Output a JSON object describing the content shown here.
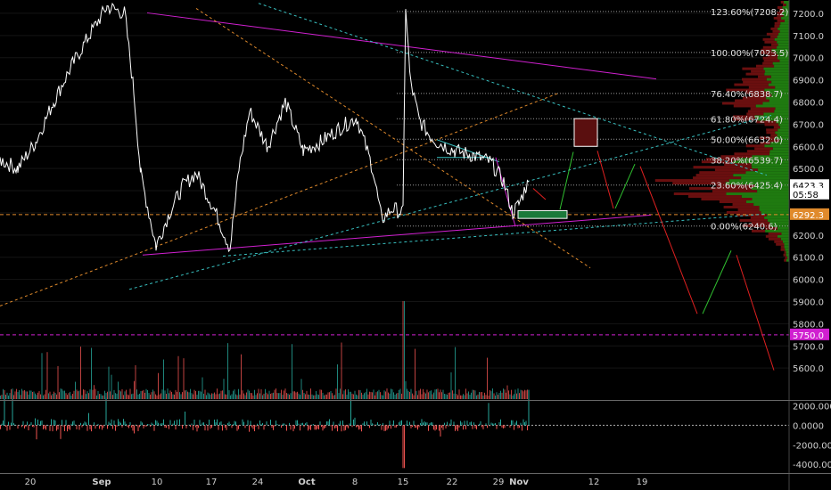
{
  "chart_data": {
    "type": "line",
    "symbol_note": "",
    "y_range": [
      5460,
      7260
    ],
    "y_ticks": [
      "7200.0",
      "7100.0",
      "7000.0",
      "6900.0",
      "6800.0",
      "6700.0",
      "6600.0",
      "6500.0",
      "6400.0",
      "6300.0",
      "6200.0",
      "6100.0",
      "6000.0",
      "5900.0",
      "5800.0",
      "5700.0",
      "5600.0"
    ],
    "x_ticks": [
      "20",
      "Sep",
      "10",
      "17",
      "24",
      "Oct",
      "8",
      "15",
      "22",
      "29",
      "Nov",
      "12",
      "19"
    ],
    "fib_levels": [
      {
        "label": "123.60%(7208.2)",
        "value": 7208.2
      },
      {
        "label": "100.00%(7023.5)",
        "value": 7023.5
      },
      {
        "label": "76.40%(6838.7)",
        "value": 6838.7
      },
      {
        "label": "61.80%(6724.4)",
        "value": 6724.4
      },
      {
        "label": "50.00%(6632.0)",
        "value": 6632.0
      },
      {
        "label": "38.20%(6539.7)",
        "value": 6539.7
      },
      {
        "label": "23.60%(6425.4)",
        "value": 6425.4
      },
      {
        "label": "0.00%(6240.6)",
        "value": 6240.6
      }
    ],
    "price_tags": [
      {
        "text": "6423.3",
        "value": 6423.3,
        "color": "#ffffff",
        "text_color": "#000000"
      },
      {
        "text": "05:58",
        "value": 6385,
        "color": "#ffffff",
        "text_color": "#000000"
      },
      {
        "text": "6292.3",
        "value": 6292.3,
        "color": "#e08a2c",
        "text_color": "#ffffff"
      },
      {
        "text": "5750.0",
        "value": 5750.0,
        "color": "#d020d0",
        "text_color": "#ffffff"
      }
    ],
    "horizontal_lines": [
      {
        "value": 6292.3,
        "color": "#e08a2c"
      },
      {
        "value": 5750.0,
        "color": "#d020d0"
      }
    ],
    "oscillator_ticks": [
      "2000.0000",
      "0.0000",
      "-2000.0000",
      "-4000.0000"
    ],
    "oscillator_range": [
      -4800,
      2400
    ],
    "colors": {
      "price": "#ffffff",
      "up": "#26a69a",
      "down": "#ef5350",
      "magenta": "#d020d0",
      "orange": "#e08a2c",
      "cyan": "#38c0c0",
      "green_box": "#1b7a3a",
      "red_box": "#5a0f0f",
      "arrow_red": "#e02020",
      "arrow_green": "#30c030",
      "profile_green": "#1f7a10",
      "profile_red": "#6a0f0f"
    }
  }
}
